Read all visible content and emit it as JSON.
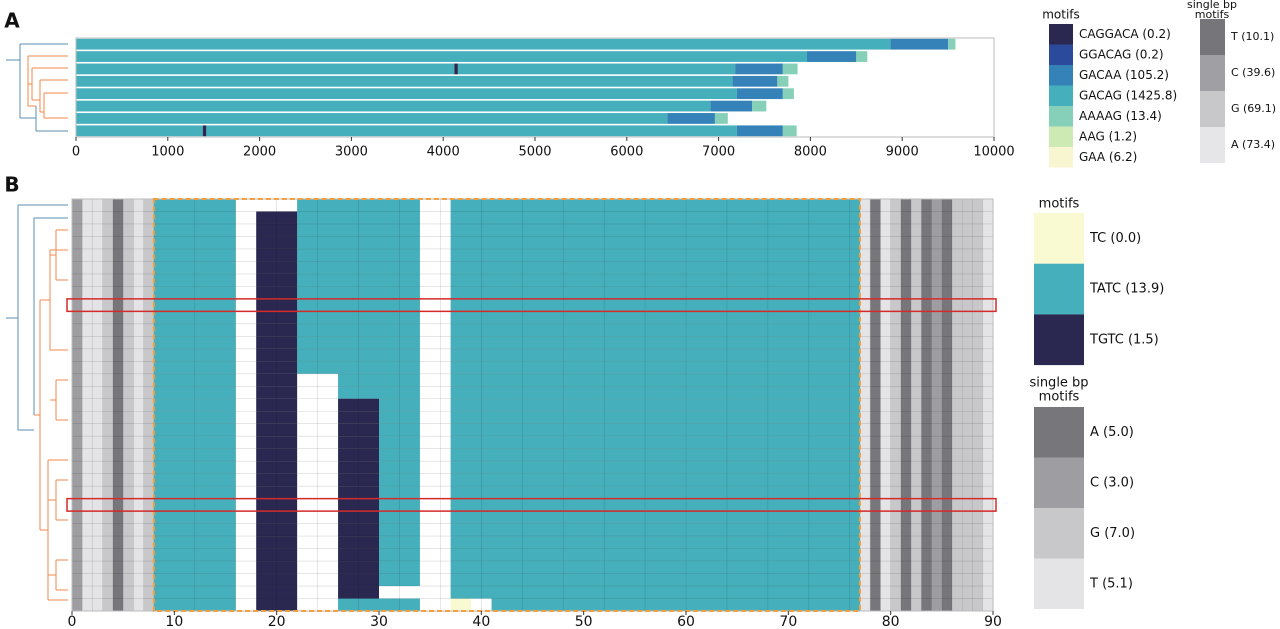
{
  "chart_data": [
    {
      "type": "tracks",
      "panel": "A",
      "xlim": [
        0,
        10000
      ],
      "xticks": [
        0,
        1000,
        2000,
        3000,
        4000,
        5000,
        6000,
        7000,
        8000,
        9000,
        10000
      ],
      "legend_title": "motifs",
      "motifs": [
        {
          "label": "CAGGACA (0.2)",
          "color": "#2a2850",
          "spans": [
            [],
            [],
            [
              [
                4120,
                4160
              ]
            ],
            [],
            [],
            [],
            [],
            [
              [
                1380,
                1420
              ]
            ]
          ]
        },
        {
          "label": "GGACAG (0.2)",
          "color": "#2c4a9c",
          "spans": [
            [],
            [],
            [],
            [],
            [],
            [],
            [],
            []
          ]
        },
        {
          "label": "GACAA (105.2)",
          "color": "#3582b9",
          "spans": [
            [
              [
                8870,
                9500
              ]
            ],
            [
              [
                7963,
                8500
              ]
            ],
            [
              [
                7180,
                7700
              ]
            ],
            [
              [
                7150,
                7640
              ]
            ],
            [
              [
                7200,
                7700
              ]
            ],
            [
              [
                6910,
                7364
              ]
            ],
            [
              [
                6440,
                6960
              ]
            ],
            [
              [
                7200,
                7700
              ]
            ]
          ]
        },
        {
          "label": "GACAG (1425.8)",
          "color": "#45b0bc",
          "spans": [
            [
              [
                0,
                8870
              ]
            ],
            [
              [
                0,
                7963
              ]
            ],
            [
              [
                0,
                4120
              ],
              [
                4160,
                7180
              ]
            ],
            [
              [
                0,
                7150
              ]
            ],
            [
              [
                0,
                7200
              ]
            ],
            [
              [
                0,
                6910
              ]
            ],
            [
              [
                0,
                6440
              ]
            ],
            [
              [
                0,
                1380
              ],
              [
                1420,
                7200
              ]
            ]
          ]
        },
        {
          "label": "AAAAG (13.4)",
          "color": "#86cfb8",
          "spans": [
            [
              [
                9500,
                9580
              ]
            ],
            [
              [
                8500,
                8620
              ]
            ],
            [
              [
                7700,
                7860
              ]
            ],
            [
              [
                7640,
                7760
              ]
            ],
            [
              [
                7700,
                7820
              ]
            ],
            [
              [
                7364,
                7520
              ]
            ],
            [
              [
                6960,
                7100
              ]
            ],
            [
              [
                7700,
                7850
              ]
            ]
          ]
        },
        {
          "label": "AAG (1.2)",
          "color": "#cde9b4",
          "spans": [
            [],
            [],
            [],
            [],
            [],
            [],
            [],
            []
          ]
        },
        {
          "label": "GAA (6.2)",
          "color": "#f8f6d0",
          "spans": [
            [],
            [],
            [],
            [],
            [],
            [],
            [],
            []
          ]
        }
      ],
      "single_bp_title": [
        "single bp",
        "motifs"
      ],
      "single_bp": [
        {
          "label": "T (10.1)",
          "color": "#76767a"
        },
        {
          "label": "C (39.6)",
          "color": "#a0a0a4"
        },
        {
          "label": "G (69.1)",
          "color": "#c8c8ca"
        },
        {
          "label": "A (73.4)",
          "color": "#e6e6e8"
        }
      ]
    },
    {
      "type": "tracks",
      "panel": "B",
      "xlim": [
        0,
        90
      ],
      "xticks": [
        0,
        10,
        20,
        30,
        40,
        50,
        60,
        70,
        80,
        90
      ],
      "region": [
        8,
        77
      ],
      "highlighted_rows": [
        8,
        24
      ],
      "legend_title": "motifs",
      "motifs": [
        {
          "label": "TC (0.0)",
          "color": "#fafad2",
          "spans": [
            [],
            [],
            [],
            [],
            [],
            [],
            [],
            [],
            [],
            [],
            [],
            [],
            [],
            [],
            [],
            [],
            [],
            [],
            [],
            [],
            [],
            [],
            [],
            [],
            [],
            [],
            [],
            [],
            [],
            [],
            [],
            [],
            [
              [
                37,
                39
              ]
            ]
          ]
        },
        {
          "label": "TATC (13.9)",
          "color": "#45b0bc",
          "spans": [
            [
              [
                8,
                16
              ],
              [
                22,
                34
              ],
              [
                37,
                77
              ]
            ],
            [
              [
                8,
                16
              ],
              [
                22,
                34
              ],
              [
                37,
                77
              ]
            ],
            [
              [
                8,
                16
              ],
              [
                22,
                34
              ],
              [
                37,
                77
              ]
            ],
            [
              [
                8,
                16
              ],
              [
                22,
                34
              ],
              [
                37,
                77
              ]
            ],
            [
              [
                8,
                16
              ],
              [
                22,
                34
              ],
              [
                37,
                77
              ]
            ],
            [
              [
                8,
                16
              ],
              [
                22,
                34
              ],
              [
                37,
                77
              ]
            ],
            [
              [
                8,
                16
              ],
              [
                22,
                34
              ],
              [
                37,
                77
              ]
            ],
            [
              [
                8,
                16
              ],
              [
                22,
                34
              ],
              [
                37,
                77
              ]
            ],
            [
              [
                8,
                16
              ],
              [
                22,
                34
              ],
              [
                37,
                77
              ]
            ],
            [
              [
                8,
                16
              ],
              [
                22,
                34
              ],
              [
                37,
                77
              ]
            ],
            [
              [
                8,
                16
              ],
              [
                22,
                34
              ],
              [
                37,
                77
              ]
            ],
            [
              [
                8,
                16
              ],
              [
                22,
                34
              ],
              [
                37,
                77
              ]
            ],
            [
              [
                8,
                16
              ],
              [
                22,
                34
              ],
              [
                37,
                77
              ]
            ],
            [
              [
                8,
                16
              ],
              [
                22,
                34
              ],
              [
                37,
                77
              ]
            ],
            [
              [
                8,
                16
              ],
              [
                26,
                34
              ],
              [
                37,
                77
              ]
            ],
            [
              [
                8,
                16
              ],
              [
                26,
                34
              ],
              [
                37,
                77
              ]
            ],
            [
              [
                8,
                16
              ],
              [
                30,
                34
              ],
              [
                37,
                77
              ]
            ],
            [
              [
                8,
                16
              ],
              [
                30,
                34
              ],
              [
                37,
                77
              ]
            ],
            [
              [
                8,
                16
              ],
              [
                30,
                34
              ],
              [
                37,
                77
              ]
            ],
            [
              [
                8,
                16
              ],
              [
                30,
                34
              ],
              [
                37,
                77
              ]
            ],
            [
              [
                8,
                16
              ],
              [
                30,
                34
              ],
              [
                37,
                77
              ]
            ],
            [
              [
                8,
                16
              ],
              [
                30,
                34
              ],
              [
                37,
                77
              ]
            ],
            [
              [
                8,
                16
              ],
              [
                30,
                34
              ],
              [
                37,
                77
              ]
            ],
            [
              [
                8,
                16
              ],
              [
                30,
                34
              ],
              [
                37,
                77
              ]
            ],
            [
              [
                8,
                16
              ],
              [
                30,
                34
              ],
              [
                37,
                77
              ]
            ],
            [
              [
                8,
                16
              ],
              [
                30,
                34
              ],
              [
                37,
                77
              ]
            ],
            [
              [
                8,
                16
              ],
              [
                30,
                34
              ],
              [
                37,
                77
              ]
            ],
            [
              [
                8,
                16
              ],
              [
                30,
                34
              ],
              [
                37,
                77
              ]
            ],
            [
              [
                8,
                16
              ],
              [
                30,
                34
              ],
              [
                37,
                77
              ]
            ],
            [
              [
                8,
                16
              ],
              [
                30,
                34
              ],
              [
                37,
                77
              ]
            ],
            [
              [
                8,
                16
              ],
              [
                30,
                34
              ],
              [
                37,
                77
              ]
            ],
            [
              [
                8,
                16
              ],
              [
                37,
                77
              ]
            ],
            [
              [
                8,
                16
              ],
              [
                26,
                34
              ],
              [
                41,
                77
              ]
            ]
          ]
        },
        {
          "label": "TGTC (1.5)",
          "color": "#2a2850",
          "spans": [
            [],
            [
              [
                18,
                22
              ]
            ],
            [
              [
                18,
                22
              ]
            ],
            [
              [
                18,
                22
              ]
            ],
            [
              [
                18,
                22
              ]
            ],
            [
              [
                18,
                22
              ]
            ],
            [
              [
                18,
                22
              ]
            ],
            [
              [
                18,
                22
              ]
            ],
            [
              [
                18,
                22
              ]
            ],
            [
              [
                18,
                22
              ]
            ],
            [
              [
                18,
                22
              ]
            ],
            [
              [
                18,
                22
              ]
            ],
            [
              [
                18,
                22
              ]
            ],
            [
              [
                18,
                22
              ]
            ],
            [
              [
                18,
                22
              ]
            ],
            [
              [
                18,
                22
              ]
            ],
            [
              [
                18,
                22
              ],
              [
                26,
                30
              ]
            ],
            [
              [
                18,
                22
              ],
              [
                26,
                30
              ]
            ],
            [
              [
                18,
                22
              ],
              [
                26,
                30
              ]
            ],
            [
              [
                18,
                22
              ],
              [
                26,
                30
              ]
            ],
            [
              [
                18,
                22
              ],
              [
                26,
                30
              ]
            ],
            [
              [
                18,
                22
              ],
              [
                26,
                30
              ]
            ],
            [
              [
                18,
                22
              ],
              [
                26,
                30
              ]
            ],
            [
              [
                18,
                22
              ],
              [
                26,
                30
              ]
            ],
            [
              [
                18,
                22
              ],
              [
                26,
                30
              ]
            ],
            [
              [
                18,
                22
              ],
              [
                26,
                30
              ]
            ],
            [
              [
                18,
                22
              ],
              [
                26,
                30
              ]
            ],
            [
              [
                18,
                22
              ],
              [
                26,
                30
              ]
            ],
            [
              [
                18,
                22
              ],
              [
                26,
                30
              ]
            ],
            [
              [
                18,
                22
              ],
              [
                26,
                30
              ]
            ],
            [
              [
                18,
                22
              ],
              [
                26,
                30
              ]
            ],
            [
              [
                18,
                22
              ],
              [
                26,
                30
              ]
            ],
            [
              [
                18,
                22
              ]
            ]
          ]
        }
      ],
      "single_bp_title": [
        "single bp",
        "motifs"
      ],
      "single_bp": [
        {
          "label": "A (5.0)",
          "color": "#77777b",
          "columns": [
            4,
            78,
            81,
            83,
            85
          ]
        },
        {
          "label": "C (3.0)",
          "color": "#9e9ea2",
          "columns": [
            0,
            84
          ]
        },
        {
          "label": "G (7.0)",
          "color": "#c8c8ca",
          "columns": [
            3,
            5,
            7,
            80,
            82,
            86,
            87,
            88
          ]
        },
        {
          "label": "T (5.1)",
          "color": "#e4e4e6",
          "columns": [
            1,
            2,
            6,
            77,
            79,
            89
          ]
        }
      ]
    }
  ]
}
